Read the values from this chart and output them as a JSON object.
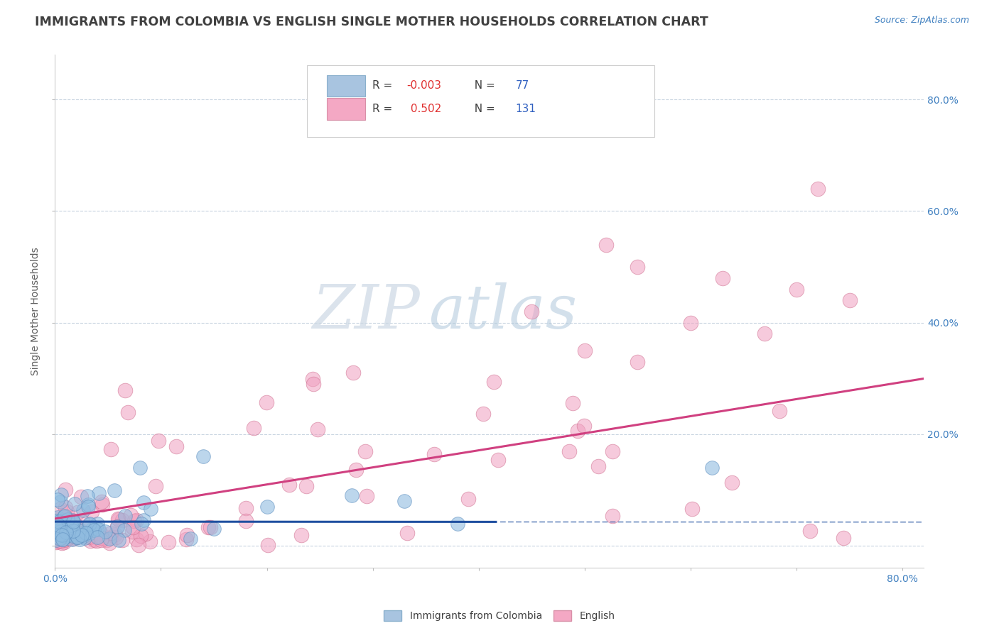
{
  "title": "IMMIGRANTS FROM COLOMBIA VS ENGLISH SINGLE MOTHER HOUSEHOLDS CORRELATION CHART",
  "source": "Source: ZipAtlas.com",
  "ylabel": "Single Mother Households",
  "xlim": [
    0.0,
    0.82
  ],
  "ylim": [
    -0.04,
    0.88
  ],
  "blue_R": -0.003,
  "blue_N": 77,
  "pink_R": 0.502,
  "pink_N": 131,
  "blue_scatter_color": "#90bce0",
  "blue_scatter_edge": "#6090c0",
  "pink_scatter_color": "#f0a0c0",
  "pink_scatter_edge": "#d07090",
  "blue_line_color": "#2050a0",
  "pink_line_color": "#d04080",
  "grid_color": "#c8d4e0",
  "background_color": "#ffffff",
  "title_color": "#404040",
  "title_fontsize": 12.5,
  "axis_label_fontsize": 10,
  "tick_fontsize": 10,
  "tick_color": "#4080c0",
  "source_color": "#4080c0",
  "watermark_color": "#d0dce8",
  "legend_edge_color": "#cccccc",
  "legend_r_color": "#e03030",
  "legend_text_color": "#404040"
}
